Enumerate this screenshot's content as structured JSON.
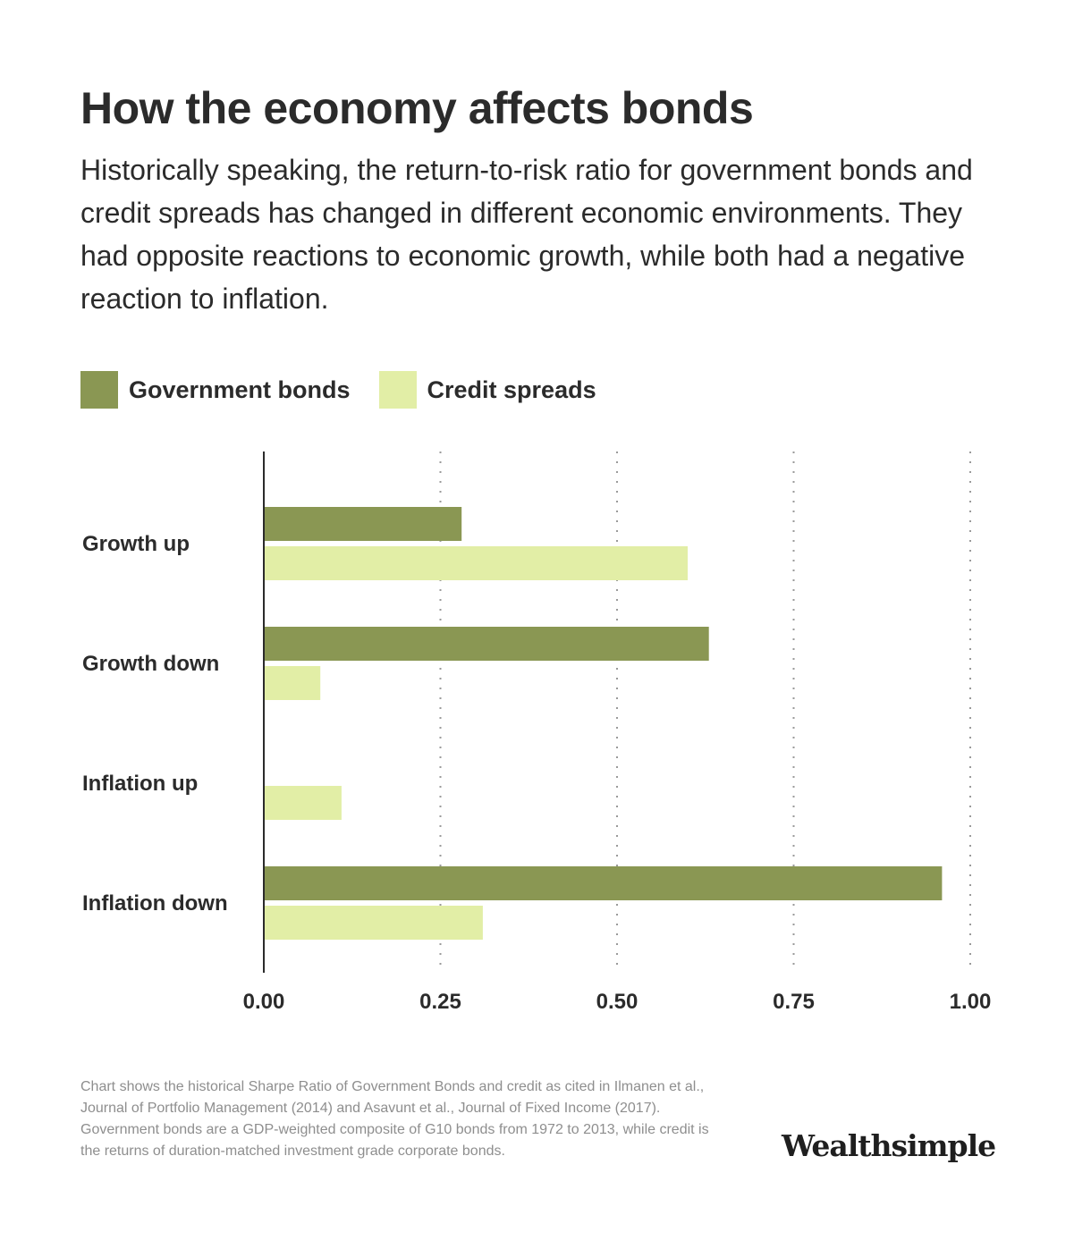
{
  "header": {
    "title": "How the economy affects bonds",
    "subtitle": "Historically speaking, the return-to-risk ratio for government bonds and credit spreads has changed in different economic environments. They had opposite reactions to economic growth, while both had a negative reaction to inflation."
  },
  "legend": [
    {
      "label": "Government bonds",
      "color": "#8a9753"
    },
    {
      "label": "Credit spreads",
      "color": "#e2eea6"
    }
  ],
  "chart_data": {
    "type": "bar",
    "orientation": "horizontal",
    "categories": [
      "Growth up",
      "Growth down",
      "Inflation up",
      "Inflation down"
    ],
    "series": [
      {
        "name": "Government bonds",
        "color": "#8a9753",
        "values": [
          0.28,
          0.63,
          0,
          0.96
        ]
      },
      {
        "name": "Credit spreads",
        "color": "#e2eea6",
        "values": [
          0.6,
          0.08,
          0.11,
          0.31
        ]
      }
    ],
    "x_ticks": [
      "0.00",
      "0.25",
      "0.50",
      "0.75",
      "1.00"
    ],
    "xlim": [
      0,
      1
    ],
    "grid": "vertical dotted",
    "legend_position": "top-left"
  },
  "footnote": "Chart shows the historical Sharpe Ratio of Government Bonds and credit as cited in Ilmanen et al., Journal of Portfolio Management (2014) and Asavunt et al., Journal of Fixed Income (2017). Government bonds are a GDP-weighted composite of G10 bonds from 1972 to 2013, while credit is the returns of duration-matched investment grade corporate bonds.",
  "brand": {
    "name": "Wealthsimple"
  }
}
